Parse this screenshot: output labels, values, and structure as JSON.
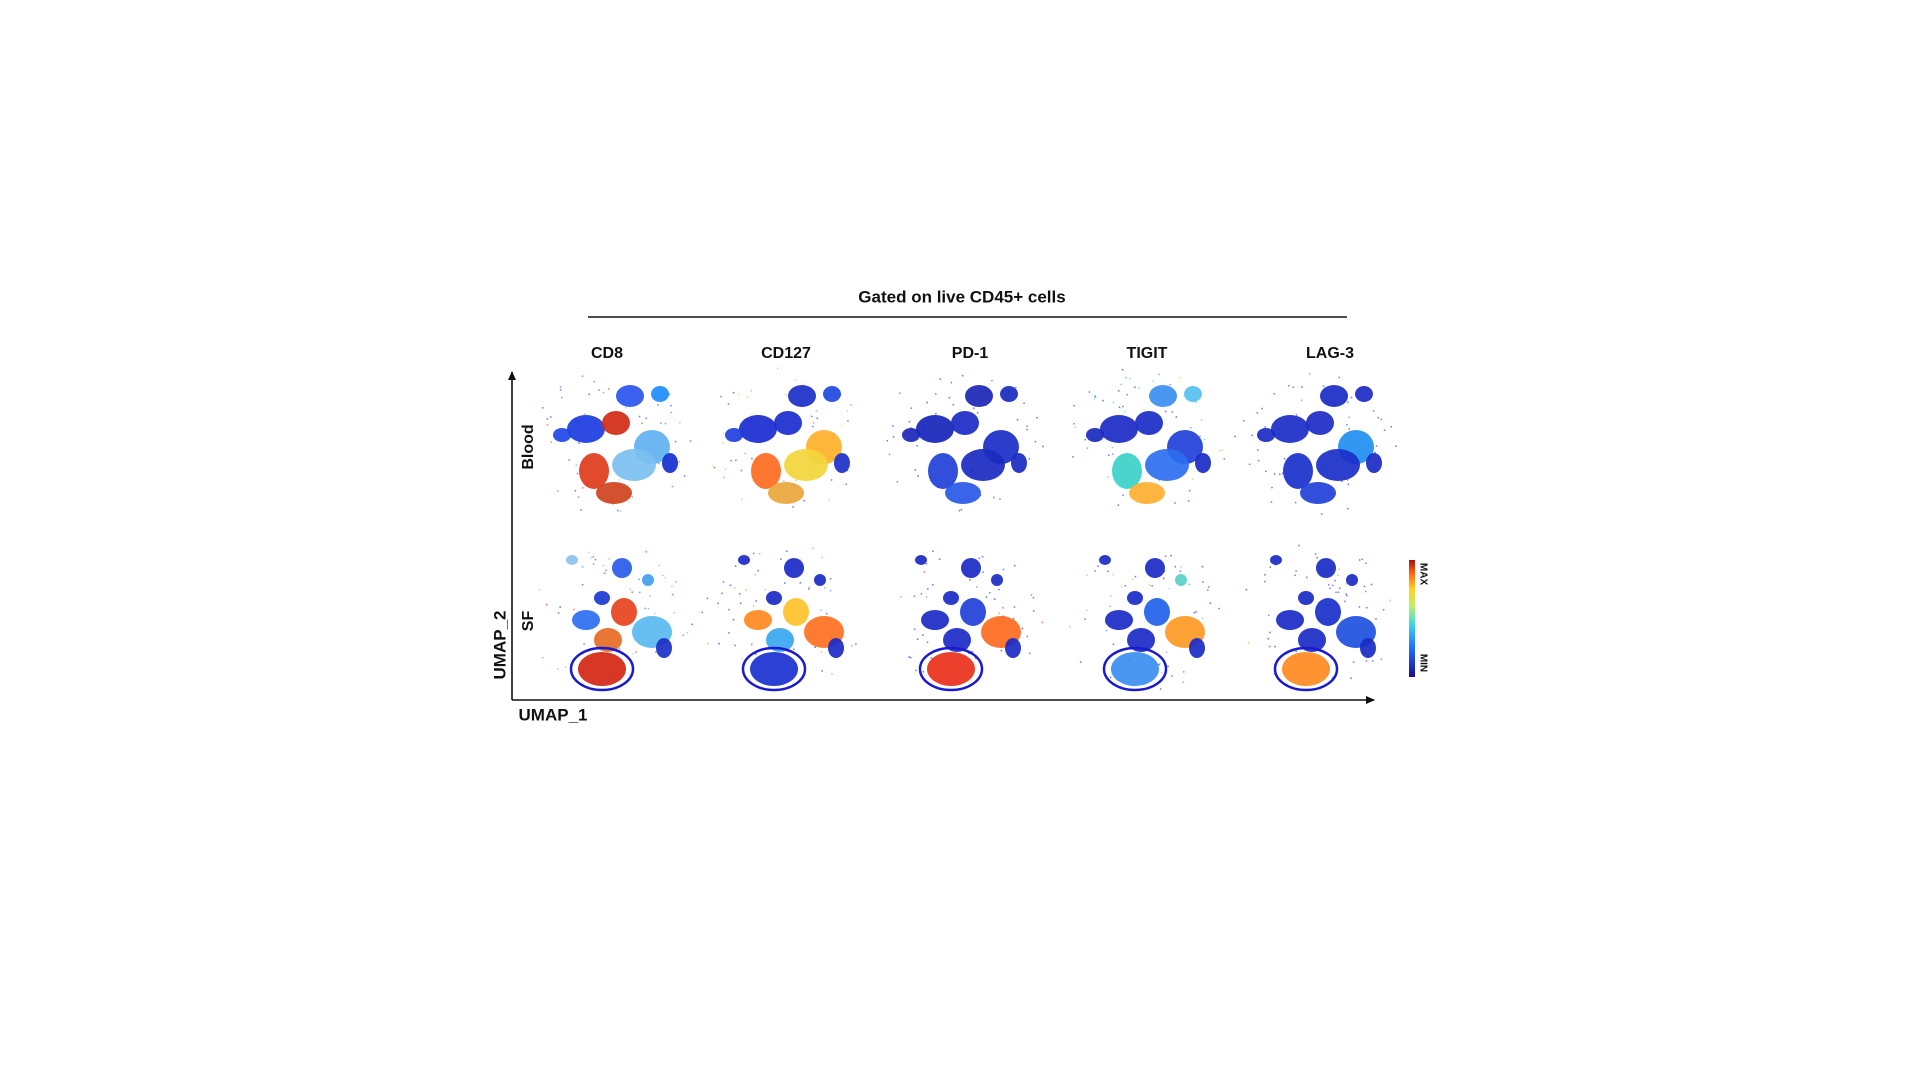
{
  "title": "Gated on live CD45+ cells",
  "columns": [
    "CD8",
    "CD127",
    "PD-1",
    "TIGIT",
    "LAG-3"
  ],
  "rows": [
    "Blood",
    "SF"
  ],
  "axes": {
    "x": "UMAP_1",
    "y": "UMAP_2"
  },
  "colorbar": {
    "max": "MAX",
    "min": "MIN"
  }
}
